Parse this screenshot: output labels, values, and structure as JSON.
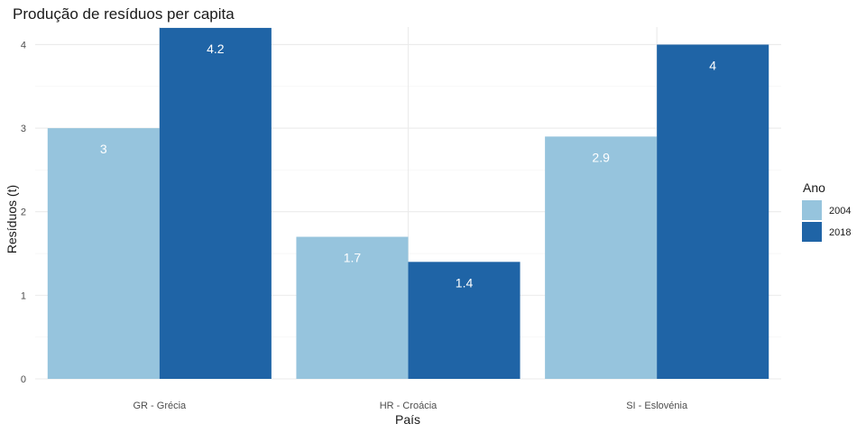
{
  "chart_data": {
    "type": "bar",
    "title": "Produção de resíduos per capita",
    "xlabel": "País",
    "ylabel": "Resíduos (t)",
    "categories": [
      "GR - Grécia",
      "HR - Croácia",
      "SI - Eslovénia"
    ],
    "series": [
      {
        "name": "2004",
        "values": [
          3.0,
          1.7,
          2.9
        ],
        "labels": [
          "3",
          "1.7",
          "2.9"
        ],
        "color": "#96c4dd"
      },
      {
        "name": "2018",
        "values": [
          4.2,
          1.4,
          4.0
        ],
        "labels": [
          "4.2",
          "1.4",
          "4"
        ],
        "color": "#1f64a6"
      }
    ],
    "ylim": [
      0,
      4.2
    ],
    "yticks": [
      0,
      1,
      2,
      3,
      4
    ],
    "grid": true,
    "legend": {
      "title": "Ano",
      "position": "right"
    }
  }
}
